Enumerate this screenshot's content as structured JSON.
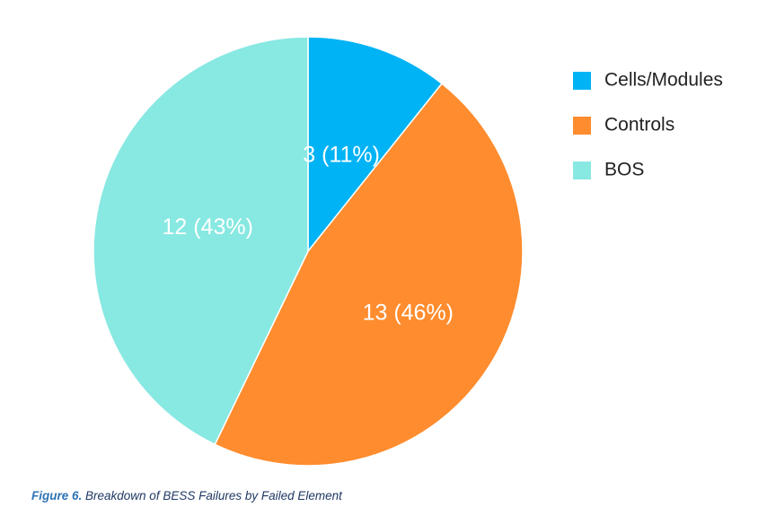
{
  "chart_data": {
    "type": "pie",
    "slices": [
      {
        "name": "Cells/Modules",
        "value": 3,
        "percent": 11,
        "label": "3 (11%)",
        "color": "#00b3f5"
      },
      {
        "name": "Controls",
        "value": 13,
        "percent": 46,
        "label": "13 (46%)",
        "color": "#ff8c2e"
      },
      {
        "name": "BOS",
        "value": 12,
        "percent": 43,
        "label": "12 (43%)",
        "color": "#88e8e2"
      }
    ],
    "start": "top",
    "direction": "clockwise",
    "legend_position": "right"
  },
  "caption": {
    "figure_label": "Figure 6.",
    "text": " Breakdown of BESS Failures by Failed Element"
  }
}
